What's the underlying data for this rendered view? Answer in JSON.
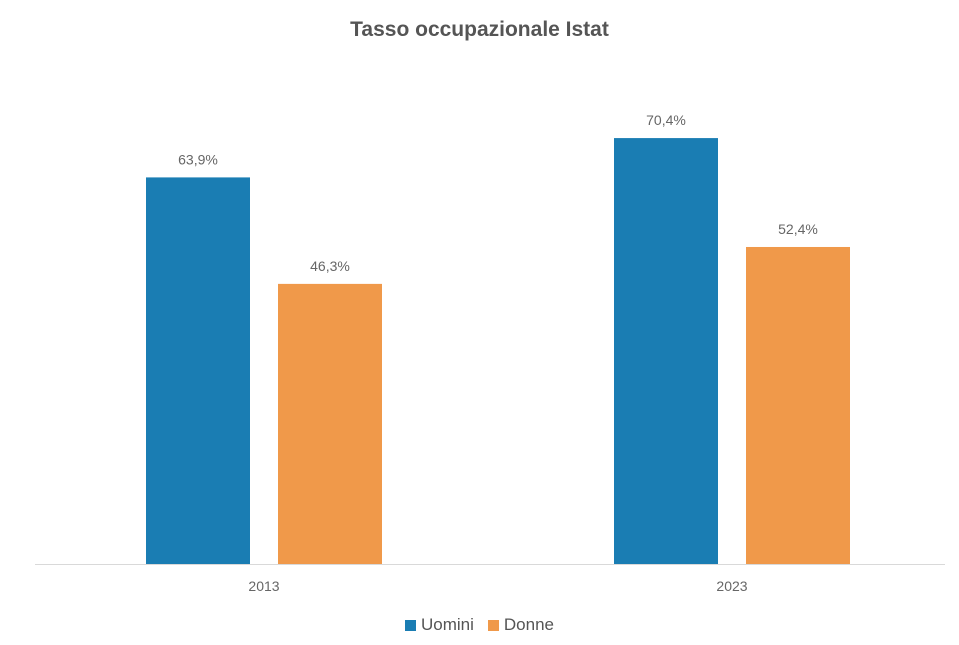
{
  "chart_data": {
    "type": "bar",
    "title": "Tasso occupazionale Istat",
    "categories": [
      "2013",
      "2023"
    ],
    "series": [
      {
        "name": "Uomini",
        "values": [
          63.9,
          70.4
        ],
        "labels": [
          "63,9%",
          "70,4%"
        ],
        "color": "#1a7db3"
      },
      {
        "name": "Donne",
        "values": [
          46.3,
          52.4
        ],
        "labels": [
          "46,3%",
          "52,4%"
        ],
        "color": "#f0994a"
      }
    ],
    "ylim": [
      0,
      80
    ],
    "grid": false,
    "legend_position": "bottom-center",
    "xlabel": "",
    "ylabel": ""
  }
}
